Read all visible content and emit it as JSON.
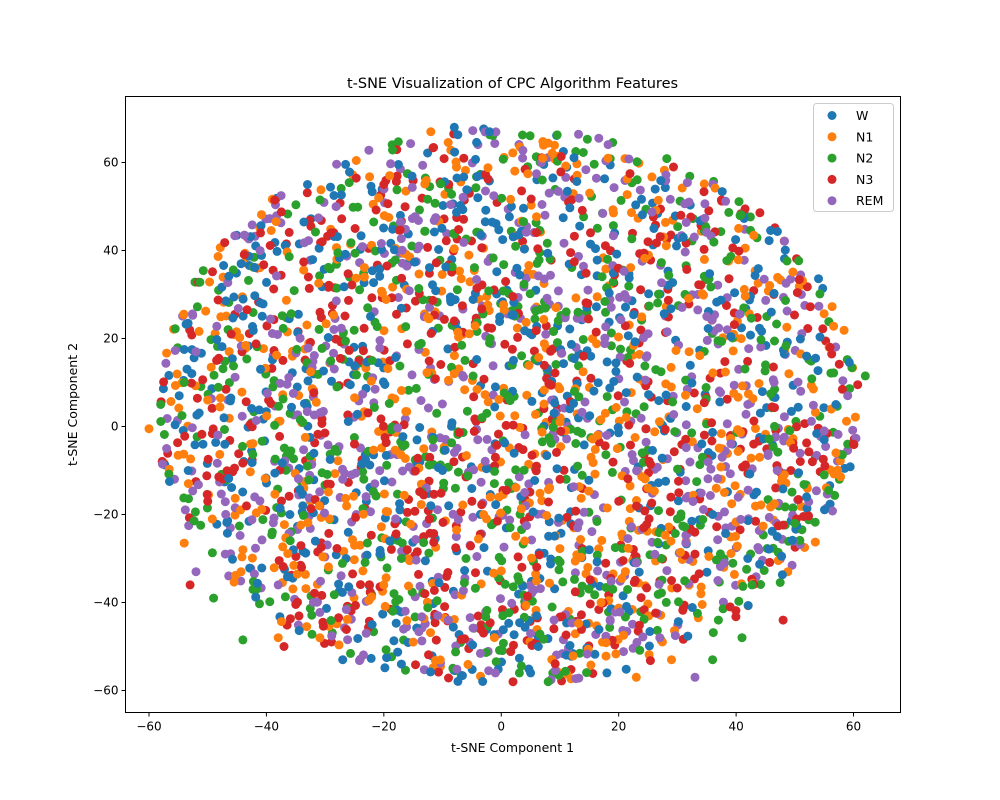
{
  "chart_data": {
    "type": "scatter",
    "title": "t-SNE Visualization of CPC Algorithm Features",
    "xlabel": "t-SNE Component 1",
    "ylabel": "t-SNE Component 2",
    "xlim": [
      -64,
      68
    ],
    "ylim": [
      -65,
      75
    ],
    "xticks": [
      -60,
      -40,
      -20,
      0,
      20,
      40,
      60
    ],
    "yticks": [
      -60,
      -40,
      -20,
      0,
      20,
      40,
      60
    ],
    "grid": false,
    "legend_position": "top-right",
    "point_distribution": "dense overlapping cloud of all classes over roughly x -58..62, y -58..68",
    "series": [
      {
        "name": "W",
        "color": "#1f77b4",
        "points": [
          [
            -56.5,
            -12.5
          ],
          [
            -54,
            17.5
          ],
          [
            -41,
            13
          ],
          [
            -36,
            -20
          ],
          [
            -33,
            55
          ],
          [
            -27,
            -53
          ],
          [
            -19,
            -26
          ],
          [
            -17,
            -54
          ],
          [
            -12,
            -18
          ],
          [
            -10,
            -10
          ],
          [
            -8,
            68
          ],
          [
            -4,
            52
          ],
          [
            -2,
            67
          ],
          [
            -1,
            9
          ],
          [
            5,
            -56
          ],
          [
            9,
            3
          ],
          [
            15,
            -28
          ],
          [
            18,
            -56
          ],
          [
            26,
            45
          ],
          [
            31,
            43
          ],
          [
            36,
            -20
          ],
          [
            42,
            -30
          ],
          [
            46,
            26
          ],
          [
            52,
            -16
          ],
          [
            55,
            -3
          ],
          [
            57,
            5
          ],
          [
            52,
            16
          ],
          [
            47,
            -25
          ]
        ]
      },
      {
        "name": "N1",
        "color": "#ff7f0e",
        "points": [
          [
            -60,
            -0.5
          ],
          [
            -54,
            -26.5
          ],
          [
            -50,
            6
          ],
          [
            -44,
            -28
          ],
          [
            -38,
            -48
          ],
          [
            -31,
            -18
          ],
          [
            -25,
            -27
          ],
          [
            -20,
            -36
          ],
          [
            -15,
            -49
          ],
          [
            -12,
            67
          ],
          [
            -8,
            12
          ],
          [
            -3,
            -20
          ],
          [
            4,
            -26
          ],
          [
            10,
            1
          ],
          [
            17,
            -40
          ],
          [
            23,
            -57
          ],
          [
            25,
            -14
          ],
          [
            29,
            -53
          ],
          [
            34,
            -38
          ],
          [
            38,
            -15
          ],
          [
            44,
            -7
          ],
          [
            49,
            12
          ],
          [
            57,
            -6
          ],
          [
            32,
            17
          ]
        ]
      },
      {
        "name": "N2",
        "color": "#2ca02c",
        "points": [
          [
            -58,
            5
          ],
          [
            -54,
            10
          ],
          [
            -49,
            -39
          ],
          [
            -44,
            -48.5
          ],
          [
            -39,
            -24
          ],
          [
            -33,
            -9
          ],
          [
            -28,
            9
          ],
          [
            -22,
            15
          ],
          [
            -17,
            -30
          ],
          [
            -11,
            3
          ],
          [
            -6,
            -30
          ],
          [
            -2,
            19
          ],
          [
            3,
            -35
          ],
          [
            8,
            -58
          ],
          [
            13,
            -9
          ],
          [
            19,
            -37
          ],
          [
            24,
            -6
          ],
          [
            30,
            -21
          ],
          [
            36,
            -53
          ],
          [
            41,
            -48
          ],
          [
            45,
            14
          ],
          [
            50,
            -22
          ],
          [
            55,
            -11
          ],
          [
            62,
            11.5
          ],
          [
            59,
            -4
          ]
        ]
      },
      {
        "name": "N3",
        "color": "#d62728",
        "points": [
          [
            -53,
            -36
          ],
          [
            -50,
            -17
          ],
          [
            -46,
            21
          ],
          [
            -41,
            44
          ],
          [
            -37,
            -50
          ],
          [
            -34,
            -32
          ],
          [
            -29,
            44
          ],
          [
            -25,
            -4
          ],
          [
            -20,
            55
          ],
          [
            -16,
            -28
          ],
          [
            -13,
            -38
          ],
          [
            -8,
            24
          ],
          [
            -5,
            -17
          ],
          [
            -1,
            -7
          ],
          [
            2,
            -58
          ],
          [
            6,
            -9
          ],
          [
            10,
            -12
          ],
          [
            14,
            16
          ],
          [
            20,
            -17
          ],
          [
            25,
            42
          ],
          [
            29,
            -35
          ],
          [
            33,
            -29
          ],
          [
            39,
            -41
          ],
          [
            43,
            -4
          ],
          [
            48,
            -44
          ],
          [
            53,
            -8
          ],
          [
            56,
            18
          ],
          [
            60,
            -4
          ]
        ]
      },
      {
        "name": "REM",
        "color": "#9467bd",
        "points": [
          [
            -57,
            -5
          ],
          [
            -52,
            -33
          ],
          [
            -47,
            -29
          ],
          [
            -42,
            -16
          ],
          [
            -38,
            -36
          ],
          [
            -32,
            -40
          ],
          [
            -27,
            -12
          ],
          [
            -23,
            -47
          ],
          [
            -18,
            -21
          ],
          [
            -14,
            41
          ],
          [
            -9,
            -44
          ],
          [
            -4,
            -3
          ],
          [
            -1,
            -56
          ],
          [
            4,
            -15
          ],
          [
            9,
            -44
          ],
          [
            13,
            -23
          ],
          [
            18,
            -2
          ],
          [
            23,
            -31
          ],
          [
            27,
            -48
          ],
          [
            33,
            -57
          ],
          [
            38,
            -31
          ],
          [
            42,
            5
          ],
          [
            47,
            -10
          ],
          [
            51,
            8
          ],
          [
            55,
            -1
          ],
          [
            59,
            7
          ],
          [
            35,
            25
          ],
          [
            21,
            30
          ]
        ]
      }
    ]
  }
}
